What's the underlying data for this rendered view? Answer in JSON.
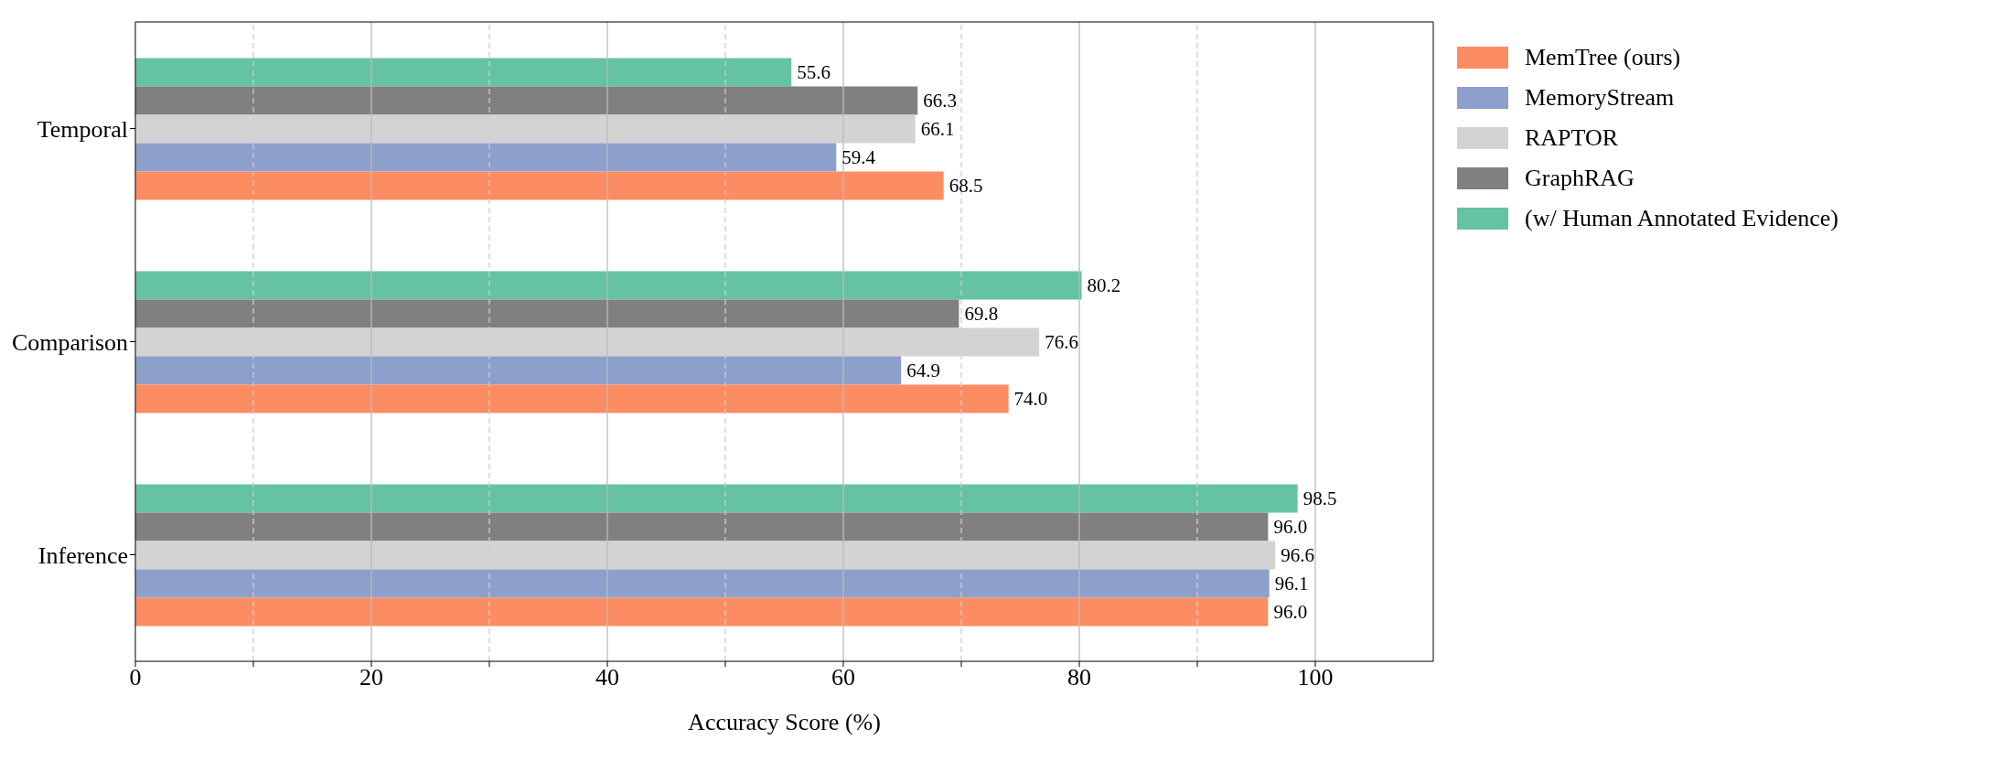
{
  "chart_data": {
    "type": "bar",
    "orientation": "horizontal",
    "xlabel": "Accuracy Score (%)",
    "categories": [
      "Temporal",
      "Comparison",
      "Inference"
    ],
    "series": [
      {
        "name": "MemTree (ours)",
        "color": "#fc8d62",
        "values": [
          68.5,
          74.0,
          96.0
        ],
        "value_labels": [
          "68.5",
          "74.0",
          "96.0"
        ]
      },
      {
        "name": "MemoryStream",
        "color": "#8da0cb",
        "values": [
          59.4,
          64.9,
          96.1
        ],
        "value_labels": [
          "59.4",
          "64.9",
          "96.1"
        ]
      },
      {
        "name": "RAPTOR",
        "color": "#d3d3d3",
        "values": [
          66.1,
          76.6,
          96.6
        ],
        "value_labels": [
          "66.1",
          "76.6",
          "96.6"
        ]
      },
      {
        "name": "GraphRAG",
        "color": "#808080",
        "values": [
          66.3,
          69.8,
          96.0
        ],
        "value_labels": [
          "66.3",
          "69.8",
          "96.0"
        ]
      },
      {
        "name": "(w/ Human Annotated Evidence)",
        "color": "#66c2a5",
        "values": [
          55.6,
          80.2,
          98.5
        ],
        "value_labels": [
          "55.6",
          "80.2",
          "98.5"
        ]
      }
    ],
    "xlim": [
      0,
      110
    ],
    "xticks": [
      0,
      {
        "value": 10,
        "label": null
      },
      20,
      {
        "value": 30,
        "label": null
      },
      40,
      {
        "value": 50,
        "label": null
      },
      60,
      {
        "value": 70,
        "label": null
      },
      80,
      {
        "value": 90,
        "label": null
      },
      100
    ],
    "grid": "x",
    "legend": "right"
  }
}
